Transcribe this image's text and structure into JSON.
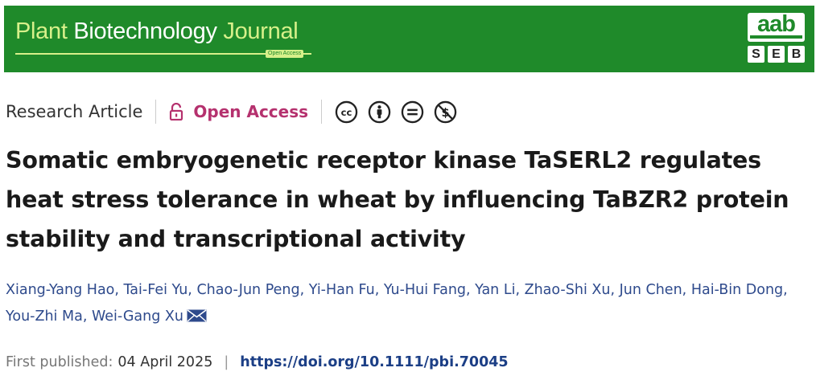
{
  "banner": {
    "journal_title_part1": "Plant ",
    "journal_title_part2": "Biotechnology ",
    "journal_title_part3": "Journal",
    "open_access_tag": "Open Access",
    "logo_aab": "aab",
    "logo_seb": [
      "S",
      "E",
      "B"
    ],
    "colors": {
      "background": "#1f8a2a",
      "accent": "#d7f08a"
    }
  },
  "meta": {
    "article_type": "Research Article",
    "open_access_label": "Open Access",
    "license_icons": [
      "cc-icon",
      "attribution-icon",
      "no-derivatives-icon",
      "non-commercial-icon"
    ]
  },
  "article": {
    "title": "Somatic embryogenetic receptor kinase TaSERL2 regulates heat stress tolerance in wheat by influencing TaBZR2 protein stability and transcriptional activity",
    "authors": [
      "Xiang-Yang Hao",
      "Tai-Fei Yu",
      "Chao-Jun Peng",
      "Yi-Han Fu",
      "Yu-Hui Fang",
      "Yan Li",
      "Zhao-Shi Xu",
      "Jun Chen",
      "Hai-Bin Dong",
      "You-Zhi Ma",
      "Wei-Gang Xu"
    ],
    "first_published_label": "First published:",
    "first_published_date": "04 April 2025",
    "pipe": "|",
    "doi": "https://doi.org/10.1111/pbi.70045"
  }
}
